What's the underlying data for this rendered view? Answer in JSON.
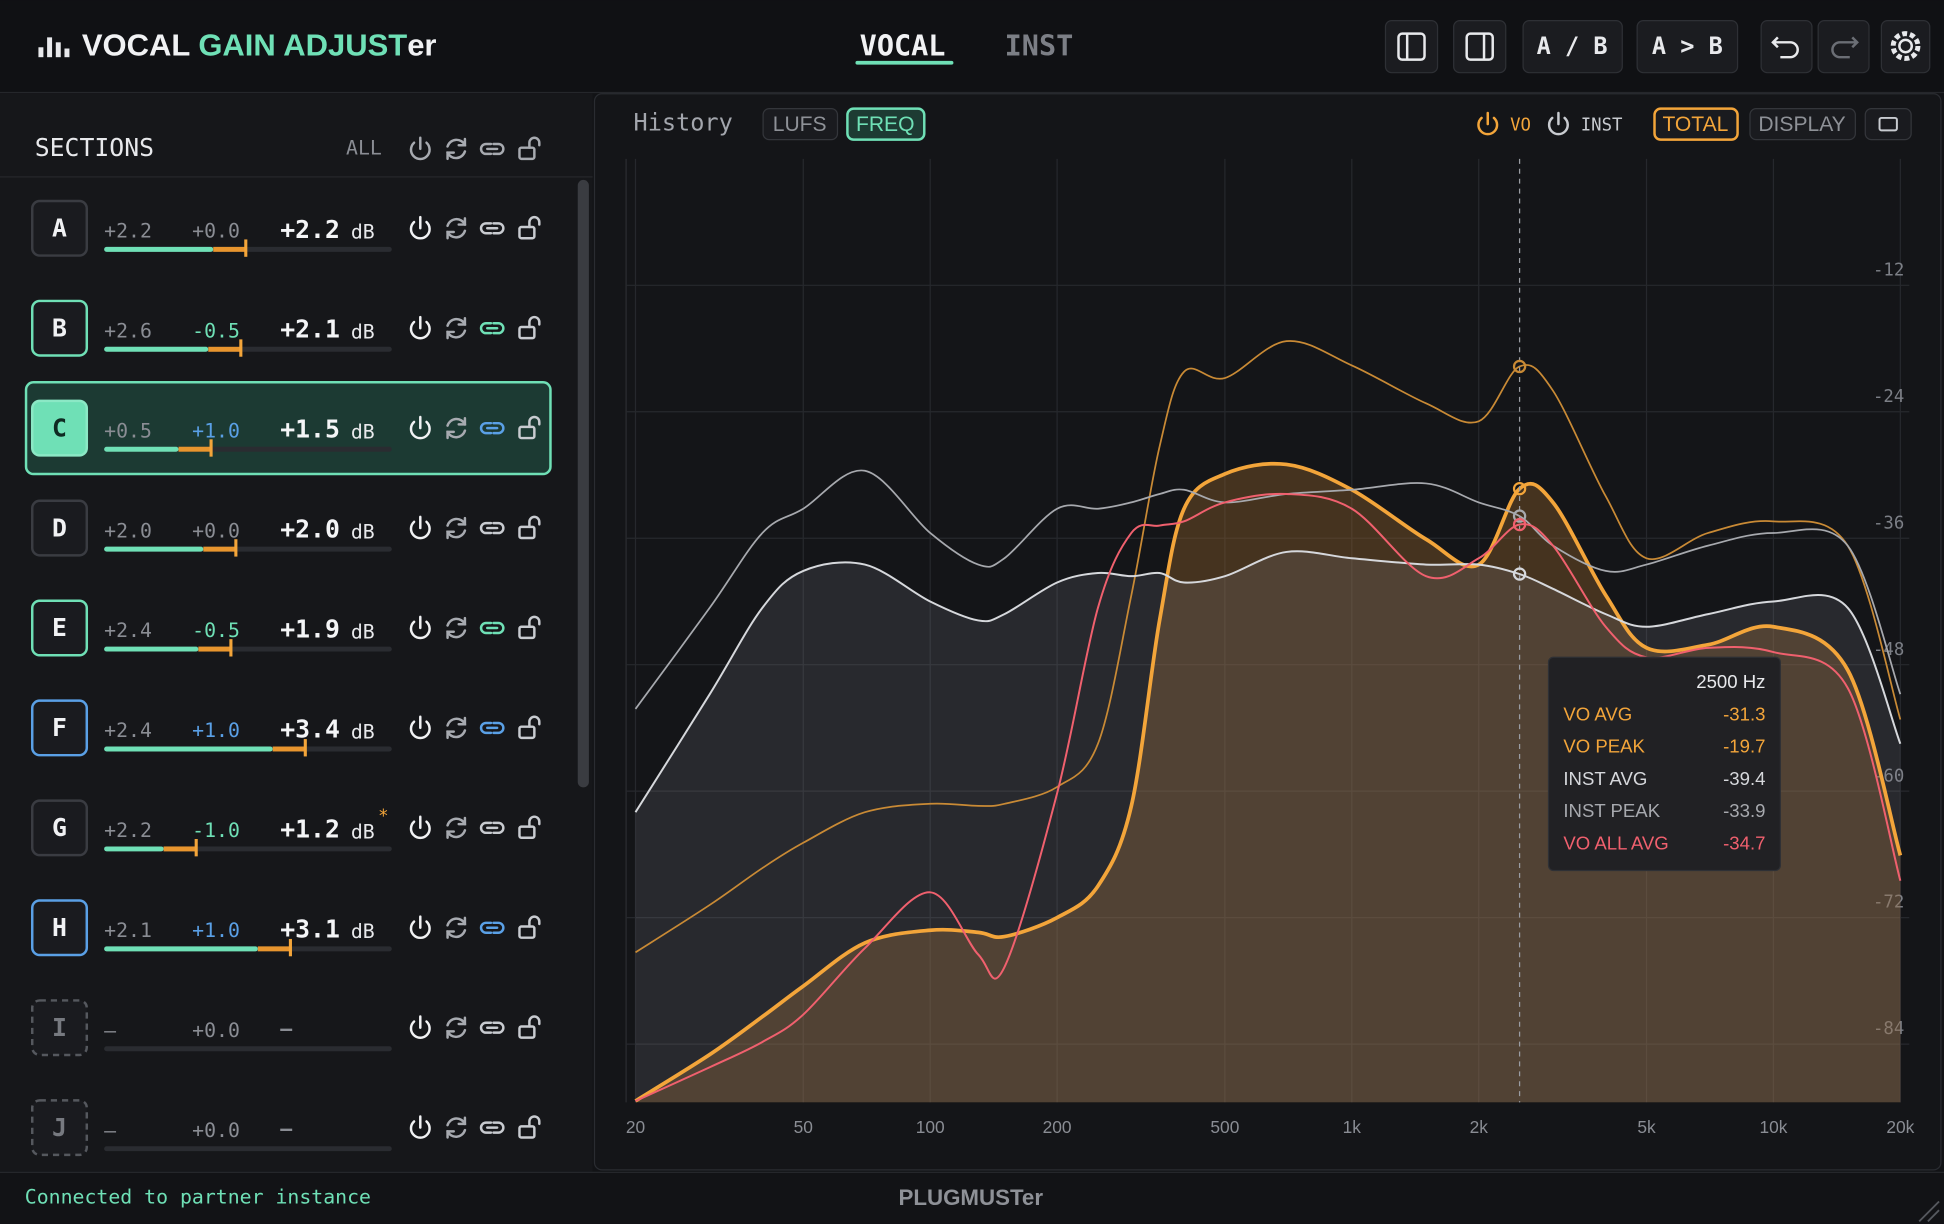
{
  "header": {
    "logo": [
      "VOCAL ",
      "GAIN ADJUST",
      "er"
    ],
    "tabs": [
      "VOCAL",
      "INST"
    ],
    "ab_toggle": "A / B",
    "ab_copy": "A > B"
  },
  "sections": {
    "title": "SECTIONS",
    "all": "ALL",
    "rows": [
      {
        "id": "A",
        "base": "+2.2",
        "offset": "+0.0",
        "total": "+2.2",
        "unit": "dB",
        "state": "gray"
      },
      {
        "id": "B",
        "base": "+2.6",
        "offset": "-0.5",
        "total": "+2.1",
        "unit": "dB",
        "state": "green"
      },
      {
        "id": "C",
        "base": "+0.5",
        "offset": "+1.0",
        "total": "+1.5",
        "unit": "dB",
        "state": "selected"
      },
      {
        "id": "D",
        "base": "+2.0",
        "offset": "+0.0",
        "total": "+2.0",
        "unit": "dB",
        "state": "gray"
      },
      {
        "id": "E",
        "base": "+2.4",
        "offset": "-0.5",
        "total": "+1.9",
        "unit": "dB",
        "state": "green"
      },
      {
        "id": "F",
        "base": "+2.4",
        "offset": "+1.0",
        "total": "+3.4",
        "unit": "dB",
        "state": "blue"
      },
      {
        "id": "G",
        "base": "+2.2",
        "offset": "-1.0",
        "total": "+1.2",
        "unit": "dB",
        "state": "gray",
        "mark": "*"
      },
      {
        "id": "H",
        "base": "+2.1",
        "offset": "+1.0",
        "total": "+3.1",
        "unit": "dB",
        "state": "blue"
      },
      {
        "id": "I",
        "base": "–",
        "offset": "+0.0",
        "total": "–",
        "state": "empty"
      },
      {
        "id": "J",
        "base": "–",
        "offset": "+0.0",
        "total": "–",
        "state": "empty"
      }
    ]
  },
  "chart_panel": {
    "title": "History",
    "modes": [
      "LUFS",
      "FREQ"
    ],
    "active_mode": 1,
    "sources": [
      "VO",
      "INST"
    ],
    "views": [
      "TOTAL",
      "DISPLAY"
    ],
    "active_view": 0
  },
  "chart_data": {
    "type": "line",
    "x": [
      20,
      30,
      40,
      50,
      70,
      100,
      130,
      150,
      200,
      250,
      300,
      350,
      400,
      500,
      700,
      1000,
      1500,
      2000,
      2500,
      3000,
      4000,
      5000,
      7000,
      10000,
      15000,
      20000
    ],
    "xlim": [
      19,
      21000
    ],
    "xscale": "log",
    "xticks": [
      20,
      50,
      100,
      200,
      500,
      {
        "value": 1000,
        "label": "1k"
      },
      {
        "value": 2000,
        "label": "2k"
      },
      {
        "value": 5000,
        "label": "5k"
      },
      {
        "value": 10000,
        "label": "10k"
      },
      {
        "value": 20000,
        "label": "20k"
      }
    ],
    "ylim": [
      -90,
      0
    ],
    "yticks": [
      -12,
      -24,
      -36,
      -48,
      -60,
      -72,
      -84
    ],
    "grid": true,
    "cursor": {
      "value": 2500,
      "label": "2500 Hz"
    },
    "series": [
      {
        "name": "VO AVG",
        "color": "#f3a53a",
        "width": 3,
        "fill": "rgba(150,100,45,0.38)",
        "values": [
          -89.4,
          -85,
          -81.4,
          -78.5,
          -74.4,
          -73.2,
          -73.4,
          -73.8,
          -72,
          -69,
          -61.4,
          -43.8,
          -33.2,
          -29.9,
          -29,
          -31.4,
          -36.1,
          -38.5,
          -31.3,
          -32.6,
          -41.4,
          -46.4,
          -46.1,
          -44.4,
          -48.5,
          -66.1
        ]
      },
      {
        "name": "VO PEAK",
        "color": "#c98a35",
        "width": 1.4,
        "values": [
          -75.3,
          -70.8,
          -67.3,
          -64.9,
          -62,
          -61.2,
          -61.4,
          -61.2,
          -59.6,
          -55.5,
          -41.4,
          -27.3,
          -20.2,
          -20.8,
          -17.3,
          -19.6,
          -23.2,
          -24.9,
          -19.7,
          -22,
          -32,
          -37.9,
          -35.5,
          -34.4,
          -36.7,
          -53.2
        ]
      },
      {
        "name": "INST AVG",
        "color": "#d6d8dc",
        "width": 1.6,
        "fill": "rgba(150,152,160,0.16)",
        "values": [
          -62,
          -50.8,
          -42.6,
          -39.1,
          -38.5,
          -42,
          -43.8,
          -43.2,
          -40.2,
          -39.3,
          -39.6,
          -39.3,
          -40.2,
          -39.6,
          -37.3,
          -37.9,
          -38.5,
          -38.5,
          -39.4,
          -40.8,
          -43.2,
          -44.4,
          -43.2,
          -42,
          -42.6,
          -55.5
        ]
      },
      {
        "name": "INST PEAK",
        "color": "#a7a9ae",
        "width": 1.4,
        "values": [
          -52.2,
          -42.6,
          -35.5,
          -33.2,
          -29.6,
          -35.5,
          -38.5,
          -37.9,
          -33.2,
          -33.2,
          -32.6,
          -31.8,
          -31.4,
          -32.6,
          -31.8,
          -31.4,
          -30.8,
          -32.6,
          -33.9,
          -36.7,
          -39.1,
          -38.5,
          -36.7,
          -35.5,
          -36.7,
          -50.8
        ]
      },
      {
        "name": "VO ALL AVG",
        "color": "#f0606e",
        "width": 1.6,
        "values": [
          -89.4,
          -86.2,
          -83.8,
          -81.2,
          -74.9,
          -69.6,
          -75.5,
          -76.7,
          -60.2,
          -42.6,
          -35.5,
          -34.8,
          -34.4,
          -32.6,
          -31.8,
          -33.2,
          -39.6,
          -37.9,
          -34.7,
          -36.7,
          -44.4,
          -47.3,
          -46.4,
          -46.8,
          -50.2,
          -68.5
        ]
      }
    ]
  },
  "footer": {
    "status": "Connected to partner instance",
    "brand": "PLUGMUSTer"
  }
}
